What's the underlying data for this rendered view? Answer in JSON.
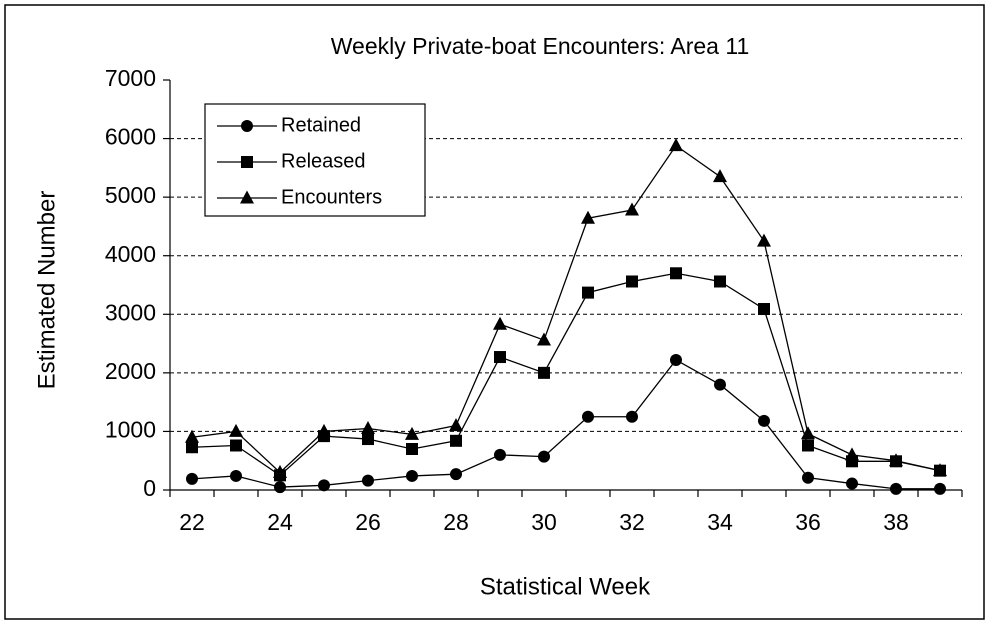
{
  "chart_data": {
    "type": "line",
    "title": "Weekly Private-boat Encounters: Area 11",
    "xlabel": "Statistical  Week",
    "ylabel": "Estimated Number",
    "categories": [
      "22",
      null,
      "24",
      null,
      "26",
      null,
      "28",
      null,
      "30",
      null,
      "32",
      null,
      "34",
      null,
      "36",
      null,
      "38",
      null
    ],
    "series": [
      {
        "name": "Retained",
        "color": "#000000",
        "marker": "circle",
        "values": [
          190,
          240,
          50,
          80,
          160,
          240,
          270,
          600,
          570,
          1250,
          1250,
          2220,
          1800,
          1180,
          210,
          110,
          20,
          20
        ]
      },
      {
        "name": "Released",
        "color": "#000000",
        "marker": "square",
        "values": [
          730,
          760,
          250,
          920,
          870,
          700,
          840,
          2270,
          2000,
          3370,
          3560,
          3700,
          3560,
          3090,
          760,
          490,
          490,
          330
        ]
      },
      {
        "name": "Encounters",
        "color": "#000000",
        "marker": "triangle",
        "values": [
          900,
          1000,
          300,
          1000,
          1050,
          950,
          1100,
          2830,
          2560,
          4640,
          4780,
          5880,
          5350,
          4250,
          960,
          600,
          500,
          330
        ]
      }
    ],
    "ylim": [
      0,
      7000
    ],
    "yticks": [
      0,
      1000,
      2000,
      3000,
      4000,
      5000,
      6000,
      7000
    ],
    "grid": true,
    "legend": "upper left"
  }
}
